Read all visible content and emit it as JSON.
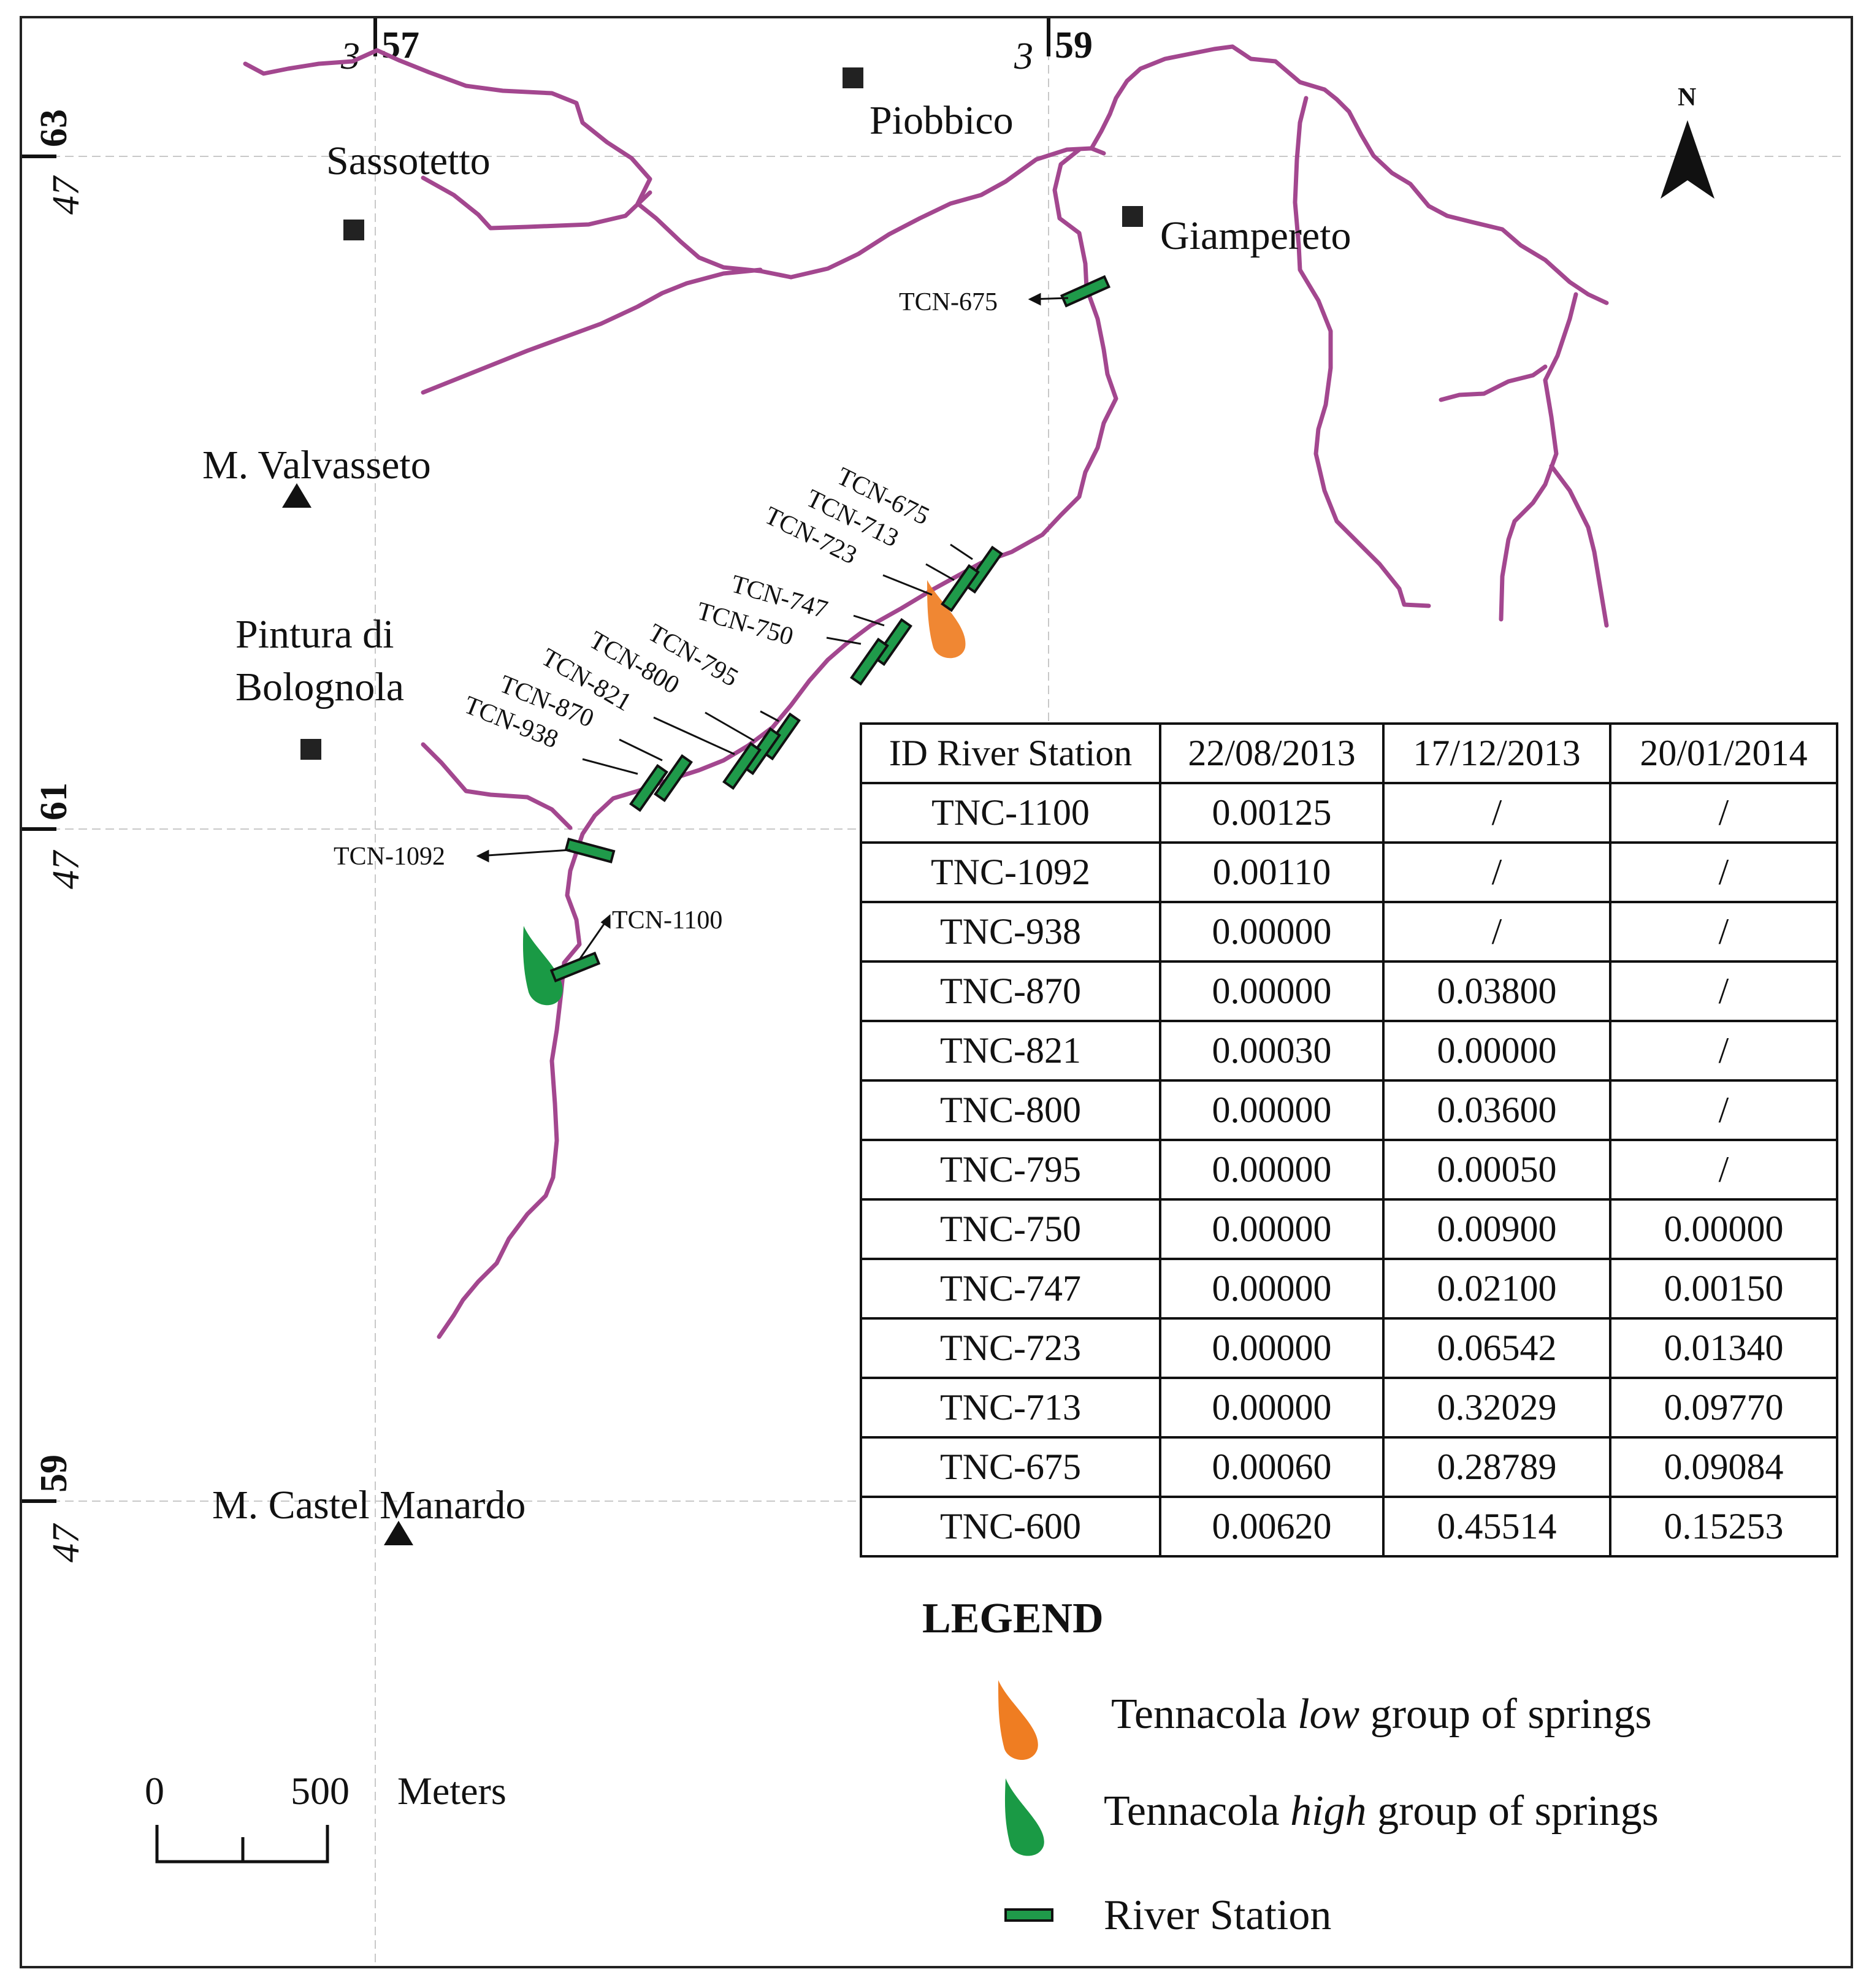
{
  "coordinates": {
    "top": [
      {
        "prefix": "3",
        "value": "57"
      },
      {
        "prefix": "3",
        "value": "59"
      }
    ],
    "left": [
      {
        "prefix": "47",
        "value": "63"
      },
      {
        "prefix": "47",
        "value": "61"
      },
      {
        "prefix": "47",
        "value": "59"
      }
    ]
  },
  "places": {
    "sassotetto": "Sassotetto",
    "piobbico": "Piobbico",
    "giampereto": "Giampereto",
    "valvasseto": "M. Valvasseto",
    "pintura_line1": "Pintura di",
    "pintura_line2": "Bolognola",
    "castel_manardo": "M. Castel Manardo"
  },
  "north_label": "N",
  "stations": {
    "tcn_675_top": "TCN-675",
    "tcn_675": "TCN-675",
    "tcn_713": "TCN-713",
    "tcn_723": "TCN-723",
    "tcn_747": "TCN-747",
    "tcn_750": "TCN-750",
    "tcn_795": "TCN-795",
    "tcn_800": "TCN-800",
    "tcn_821": "TCN-821",
    "tcn_870": "TCN-870",
    "tcn_938": "TCN-938",
    "tcn_1092": "TCN-1092",
    "tcn_1100": "TCN-1100"
  },
  "table": {
    "headers": [
      "ID River Station",
      "22/08/2013",
      "17/12/2013",
      "20/01/2014"
    ],
    "rows": [
      [
        "TNC-1100",
        "0.00125",
        "/",
        "/"
      ],
      [
        "TNC-1092",
        "0.00110",
        "/",
        "/"
      ],
      [
        "TNC-938",
        "0.00000",
        "/",
        "/"
      ],
      [
        "TNC-870",
        "0.00000",
        "0.03800",
        "/"
      ],
      [
        "TNC-821",
        "0.00030",
        "0.00000",
        "/"
      ],
      [
        "TNC-800",
        "0.00000",
        "0.03600",
        "/"
      ],
      [
        "TNC-795",
        "0.00000",
        "0.00050",
        "/"
      ],
      [
        "TNC-750",
        "0.00000",
        "0.00900",
        "0.00000"
      ],
      [
        "TNC-747",
        "0.00000",
        "0.02100",
        "0.00150"
      ],
      [
        "TNC-723",
        "0.00000",
        "0.06542",
        "0.01340"
      ],
      [
        "TNC-713",
        "0.00000",
        "0.32029",
        "0.09770"
      ],
      [
        "TNC-675",
        "0.00060",
        "0.28789",
        "0.09084"
      ],
      [
        "TNC-600",
        "0.00620",
        "0.45514",
        "0.15253"
      ]
    ]
  },
  "legend": {
    "title": "LEGEND",
    "low_pre": "Tennacola ",
    "low_em": "low",
    "low_post": " group of springs",
    "high_pre": "Tennacola ",
    "high_em": "high",
    "high_post": " group of springs",
    "station": "River Station",
    "colors": {
      "low_springs": "#ef7d22",
      "high_springs": "#1a9a45",
      "river_station": "#1f9a4a",
      "river": "#a3478f"
    }
  },
  "scale": {
    "zero": "0",
    "value": "500",
    "unit": "Meters"
  }
}
